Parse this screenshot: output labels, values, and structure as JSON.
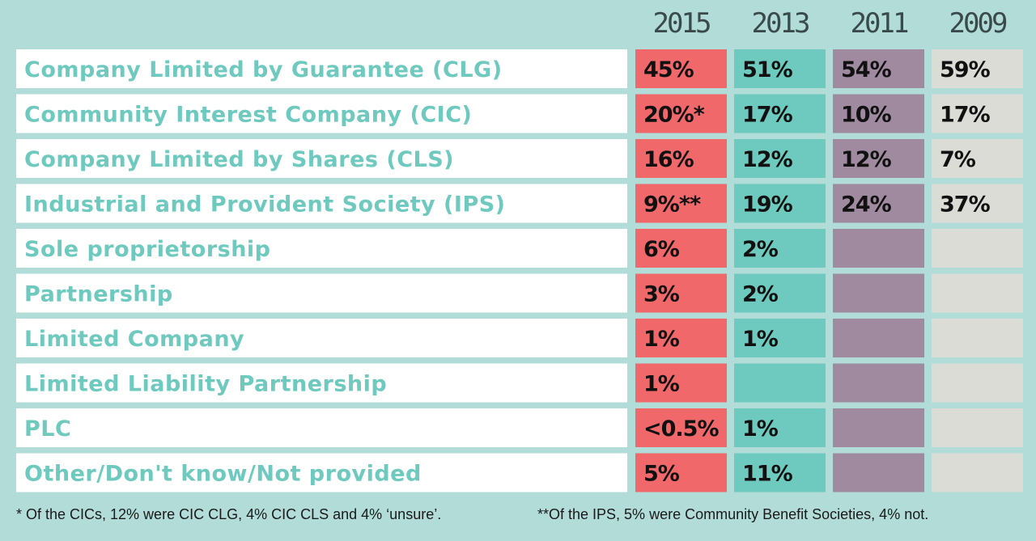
{
  "chart_data": {
    "type": "table",
    "columns": [
      "2015",
      "2013",
      "2011",
      "2009"
    ],
    "column_colors": [
      "#f0686a",
      "#6ec9bf",
      "#a08aa0",
      "#dcdcd6"
    ],
    "label_color": "#6ec9bf",
    "background": "#b1dcd8",
    "rows": [
      {
        "label": "Company Limited by Guarantee (CLG)",
        "values": [
          "45%",
          "51%",
          "54%",
          "59%"
        ]
      },
      {
        "label": "Community Interest Company (CIC)",
        "values": [
          "20%*",
          "17%",
          "10%",
          "17%"
        ]
      },
      {
        "label": "Company Limited by Shares (CLS)",
        "values": [
          "16%",
          "12%",
          "12%",
          "7%"
        ]
      },
      {
        "label": "Industrial and Provident Society (IPS)",
        "values": [
          "9%**",
          "19%",
          "24%",
          "37%"
        ]
      },
      {
        "label": "Sole proprietorship",
        "values": [
          "6%",
          "2%",
          "",
          ""
        ]
      },
      {
        "label": "Partnership",
        "values": [
          "3%",
          "2%",
          "",
          ""
        ]
      },
      {
        "label": "Limited Company",
        "values": [
          "1%",
          "1%",
          "",
          ""
        ]
      },
      {
        "label": "Limited Liability Partnership",
        "values": [
          "1%",
          "",
          "",
          ""
        ]
      },
      {
        "label": "PLC",
        "values": [
          "<0.5%",
          "1%",
          "",
          ""
        ]
      },
      {
        "label": "Other/Don't know/Not provided",
        "values": [
          "5%",
          "11%",
          "",
          ""
        ]
      }
    ]
  },
  "footnotes": {
    "cic": "* Of the CICs, 12% were CIC CLG, 4% CIC CLS and 4% ‘unsure’.",
    "ips": "**Of the IPS, 5% were Community Benefit Societies, 4% not."
  }
}
